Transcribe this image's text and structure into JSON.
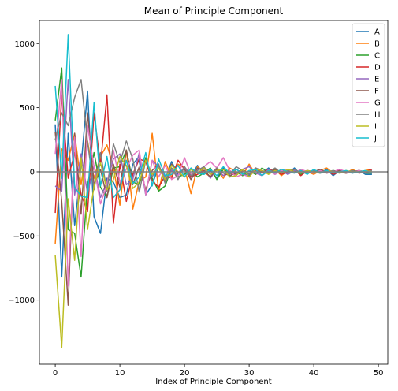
{
  "chart_data": {
    "type": "line",
    "title": "Mean of Principle Component",
    "xlabel": "Index of Principle Component",
    "ylabel": "",
    "xlim": [
      -2.45,
      51.45
    ],
    "ylim": [
      -1500,
      1180
    ],
    "xticks": [
      0,
      10,
      20,
      30,
      40,
      50
    ],
    "yticks": [
      -1000,
      -500,
      0,
      500,
      1000
    ],
    "xtick_labels": [
      "0",
      "10",
      "20",
      "30",
      "40",
      "50"
    ],
    "ytick_labels": [
      "−1000",
      "−500",
      "0",
      "500",
      "1000"
    ],
    "legend_position": "top-right",
    "reference_line": {
      "y": 0,
      "color": "#808080"
    },
    "series": [
      {
        "name": "A",
        "color": "#1f77b4",
        "values": [
          370,
          -820,
          300,
          -420,
          50,
          630,
          -350,
          -480,
          -50,
          -80,
          -200,
          -180,
          60,
          120,
          -180,
          -100,
          40,
          -60,
          80,
          -20,
          30,
          -40,
          50,
          -20,
          10,
          -50,
          30,
          -40,
          20,
          -10,
          -30,
          20,
          -10,
          30,
          -20,
          10,
          -20,
          30,
          -20,
          10,
          0,
          -10,
          20,
          -30,
          10,
          0,
          -10,
          10,
          -20,
          -20
        ]
      },
      {
        "name": "B",
        "color": "#ff7f0e",
        "values": [
          -560,
          180,
          90,
          300,
          -100,
          240,
          -50,
          120,
          210,
          40,
          -260,
          170,
          -290,
          -70,
          -40,
          300,
          -150,
          80,
          -40,
          60,
          30,
          -170,
          40,
          0,
          -40,
          20,
          -50,
          30,
          0,
          -30,
          60,
          -20,
          10,
          -10,
          20,
          -30,
          10,
          20,
          -10,
          0,
          -20,
          10,
          30,
          -10,
          0,
          -10,
          20,
          -10,
          10,
          20
        ]
      },
      {
        "name": "C",
        "color": "#2ca02c",
        "values": [
          400,
          810,
          -450,
          -480,
          -820,
          -100,
          150,
          -120,
          -200,
          30,
          40,
          170,
          -80,
          -100,
          110,
          -50,
          -150,
          -110,
          30,
          -40,
          -20,
          20,
          -40,
          -10,
          30,
          -60,
          20,
          -10,
          0,
          -30,
          10,
          -20,
          30,
          -10,
          0,
          10,
          -10,
          20,
          -20,
          0,
          -10,
          20,
          -10,
          10,
          0,
          -10,
          10,
          0,
          -10,
          -10
        ]
      },
      {
        "name": "D",
        "color": "#d62728",
        "values": [
          -320,
          600,
          -50,
          150,
          -180,
          -310,
          460,
          50,
          600,
          -400,
          60,
          -230,
          -20,
          100,
          80,
          -70,
          -120,
          -30,
          -50,
          90,
          20,
          -40,
          -20,
          10,
          -40,
          20,
          -30,
          -10,
          -20,
          10,
          -20,
          30,
          -10,
          20,
          10,
          -20,
          0,
          20,
          -30,
          10,
          0,
          -10,
          10,
          -20,
          0,
          -10,
          10,
          -10,
          0,
          20
        ]
      },
      {
        "name": "E",
        "color": "#9467bd",
        "values": [
          -110,
          -150,
          720,
          -180,
          140,
          -170,
          50,
          -200,
          -80,
          100,
          140,
          -100,
          -60,
          150,
          -170,
          90,
          40,
          -40,
          10,
          -30,
          40,
          -60,
          20,
          30,
          -50,
          20,
          -30,
          10,
          -20,
          20,
          40,
          -10,
          -30,
          20,
          -10,
          10,
          -20,
          10,
          0,
          10,
          -10,
          0,
          10,
          -10,
          20,
          -10,
          0,
          10,
          -10,
          0
        ]
      },
      {
        "name": "F",
        "color": "#8c564b",
        "values": [
          310,
          -230,
          -1040,
          300,
          -330,
          460,
          -100,
          20,
          -200,
          60,
          -120,
          170,
          -100,
          40,
          -140,
          10,
          60,
          -80,
          60,
          -10,
          20,
          -60,
          30,
          10,
          -40,
          20,
          -10,
          -30,
          -10,
          20,
          -20,
          10,
          0,
          -10,
          20,
          -10,
          10,
          0,
          10,
          -10,
          0,
          20,
          -10,
          0,
          10,
          -10,
          0,
          10,
          0,
          -10
        ]
      },
      {
        "name": "G",
        "color": "#e377c2",
        "values": [
          140,
          720,
          -890,
          270,
          -660,
          360,
          40,
          -250,
          -100,
          170,
          -80,
          20,
          130,
          170,
          -180,
          90,
          -40,
          50,
          -60,
          -30,
          110,
          -20,
          10,
          40,
          80,
          30,
          110,
          10,
          -40,
          -20,
          -40,
          20,
          -30,
          10,
          -20,
          10,
          20,
          -10,
          20,
          0,
          -10,
          10,
          -10,
          0,
          20,
          0,
          -10,
          10,
          0,
          10
        ]
      },
      {
        "name": "H",
        "color": "#7f7f7f",
        "values": [
          250,
          460,
          360,
          580,
          720,
          230,
          -140,
          150,
          -150,
          220,
          70,
          240,
          100,
          -160,
          90,
          -40,
          60,
          -90,
          30,
          -60,
          40,
          -30,
          10,
          40,
          -20,
          30,
          -10,
          -20,
          40,
          10,
          -20,
          30,
          10,
          -10,
          30,
          -10,
          10,
          20,
          -10,
          0,
          10,
          -10,
          0,
          10,
          -10,
          0,
          10,
          -10,
          0,
          10
        ]
      },
      {
        "name": "I",
        "color": "#bcbd22",
        "values": [
          -650,
          -1370,
          -210,
          -690,
          110,
          -450,
          -110,
          70,
          -140,
          -60,
          120,
          50,
          -130,
          -80,
          90,
          -20,
          30,
          -60,
          50,
          0,
          -40,
          20,
          -10,
          30,
          -20,
          10,
          20,
          -40,
          -30,
          20,
          -40,
          20,
          10,
          -20,
          10,
          -10,
          20,
          0,
          -10,
          10,
          0,
          -10,
          10,
          0,
          -10,
          10,
          0,
          0,
          10,
          0
        ]
      },
      {
        "name": "J",
        "color": "#17becf",
        "values": [
          670,
          -50,
          1070,
          -120,
          -190,
          -200,
          540,
          -110,
          120,
          -200,
          -140,
          90,
          -90,
          -40,
          150,
          -110,
          100,
          -30,
          -20,
          50,
          -40,
          30,
          -10,
          -20,
          20,
          -30,
          40,
          -10,
          20,
          -20,
          10,
          20,
          -30,
          10,
          -10,
          20,
          0,
          -10,
          10,
          -20,
          20,
          -10,
          10,
          -10,
          0,
          10,
          -10,
          0,
          10,
          -10
        ]
      }
    ]
  }
}
